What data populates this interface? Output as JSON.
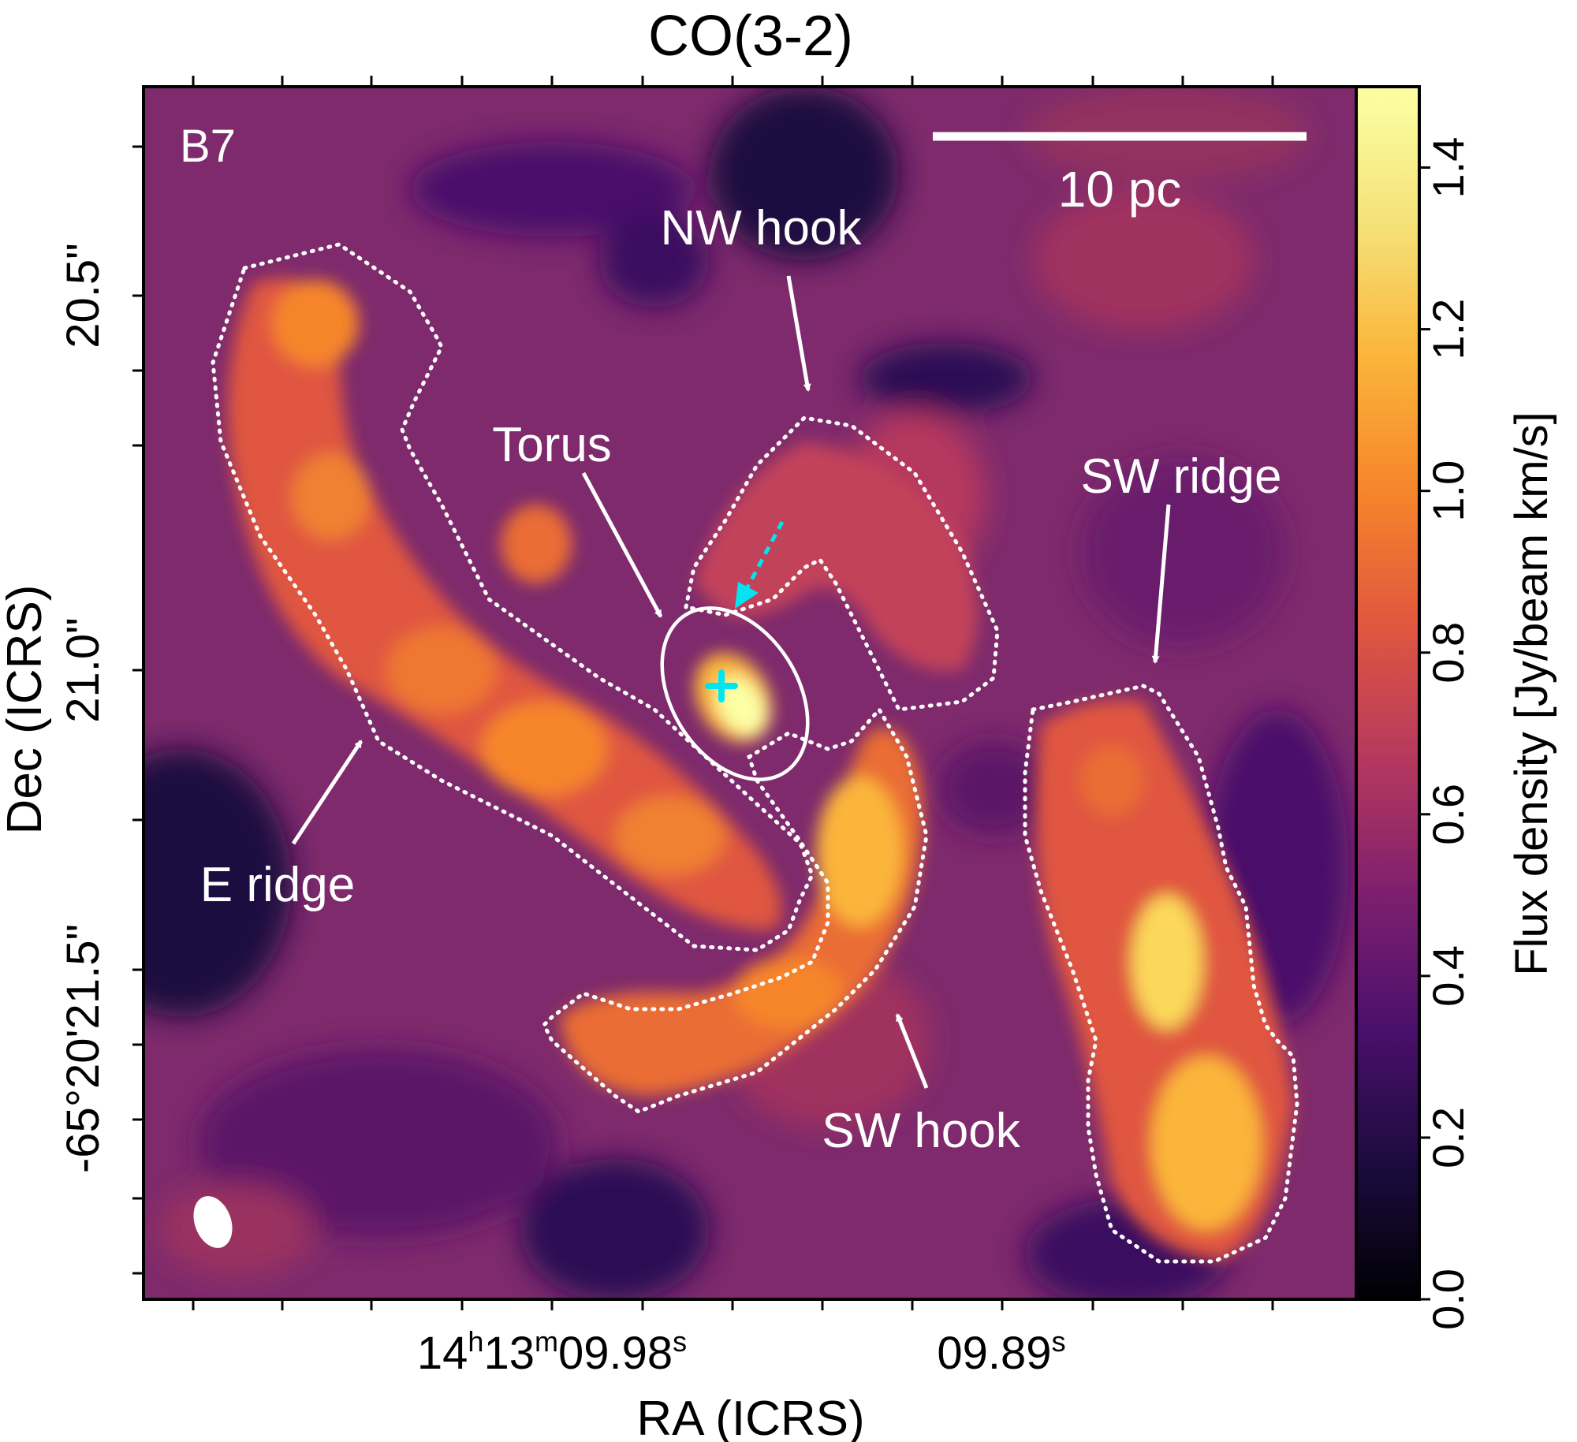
{
  "chart_data": {
    "type": "heatmap",
    "title": "CO(3-2)",
    "xlabel": "RA (ICRS)",
    "ylabel": "Dec (ICRS)",
    "x_ticklabels": [
      {
        "pre": "14",
        "sup1": "h",
        "mid": "13",
        "sup2": "m",
        "post": "09.98",
        "sup3": "s"
      },
      {
        "pre": "",
        "sup1": "",
        "mid": "",
        "sup2": "",
        "post": "09.89",
        "sup3": "s"
      }
    ],
    "y_ticklabels": [
      "20.5\"",
      "21.0\"",
      "-65°20'21.5\""
    ],
    "colorbar": {
      "label": "Flux density [Jy/beam km/s]",
      "range": [
        0.0,
        1.5
      ],
      "ticks": [
        0.0,
        0.2,
        0.4,
        0.6,
        0.8,
        1.0,
        1.2,
        1.4
      ],
      "tick_labels": [
        "0.0",
        "0.2",
        "0.4",
        "0.6",
        "0.8",
        "1.0",
        "1.2",
        "1.4"
      ],
      "colormap": "inferno-like",
      "stops": [
        "#000004",
        "#1c0b3f",
        "#4a0f6b",
        "#7d1f6e",
        "#b5385e",
        "#e0573f",
        "#f6852b",
        "#fbb53b",
        "#f5e27a",
        "#fcffa4"
      ]
    },
    "band_label": "B7",
    "scale_bar_label": "10 pc",
    "regions": [
      "NW hook",
      "Torus",
      "SW ridge",
      "E ridge",
      "SW hook"
    ],
    "nucleus_marker": "cyan cross",
    "beam": "white ellipse, lower-left"
  }
}
